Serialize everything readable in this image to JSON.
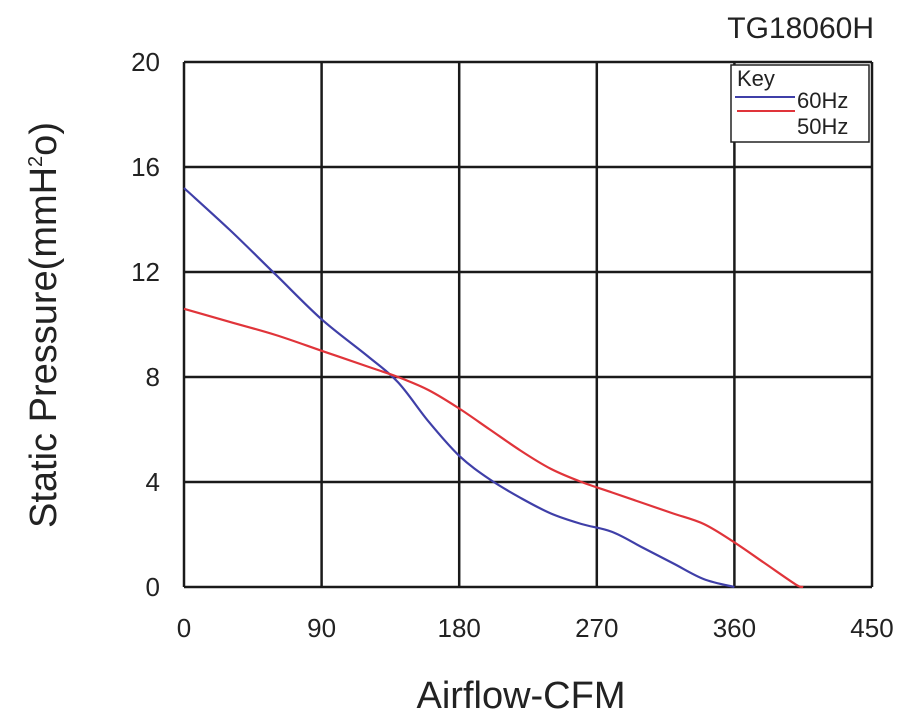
{
  "chart_data": {
    "type": "line",
    "title": "TG18060H",
    "xlabel": "Airflow-CFM",
    "ylabel": "Static Pressure(mmH",
    "ylabel_sup": "2",
    "ylabel_tail": "o)",
    "xlim": [
      0,
      450
    ],
    "ylim": [
      0,
      20
    ],
    "xticks": [
      0,
      90,
      180,
      270,
      360,
      450
    ],
    "yticks": [
      0,
      4,
      8,
      12,
      16,
      20
    ],
    "grid": true,
    "legend": {
      "title": "Key",
      "position": "top-right",
      "entries": [
        "60Hz",
        "50Hz"
      ]
    },
    "series": [
      {
        "name": "60Hz",
        "color": "#3f3fa8",
        "x": [
          0,
          30,
          60,
          90,
          120,
          140,
          160,
          180,
          200,
          220,
          240,
          260,
          280,
          300,
          320,
          340,
          360
        ],
        "y": [
          15.2,
          13.6,
          11.9,
          10.2,
          8.8,
          7.8,
          6.3,
          5.0,
          4.1,
          3.4,
          2.8,
          2.4,
          2.1,
          1.5,
          0.9,
          0.3,
          0.0
        ]
      },
      {
        "name": "50Hz",
        "color": "#e0343a",
        "x": [
          0,
          30,
          60,
          90,
          120,
          140,
          160,
          180,
          200,
          220,
          240,
          260,
          280,
          300,
          320,
          340,
          360,
          380,
          400,
          405
        ],
        "y": [
          10.6,
          10.1,
          9.6,
          9.0,
          8.4,
          8.0,
          7.5,
          6.8,
          6.0,
          5.2,
          4.5,
          4.0,
          3.6,
          3.2,
          2.8,
          2.4,
          1.7,
          0.9,
          0.1,
          0.0
        ]
      }
    ]
  }
}
